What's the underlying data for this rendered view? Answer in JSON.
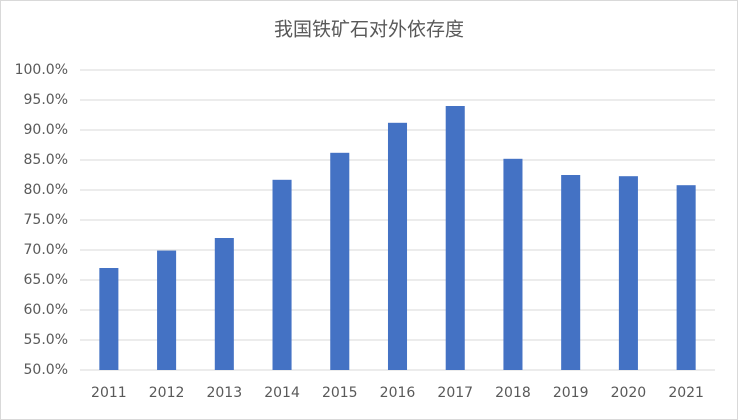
{
  "chart_data": {
    "type": "bar",
    "title": "我国铁矿石对外依存度",
    "categories": [
      "2011",
      "2012",
      "2013",
      "2014",
      "2015",
      "2016",
      "2017",
      "2018",
      "2019",
      "2020",
      "2021"
    ],
    "values": [
      67.0,
      69.9,
      72.0,
      81.7,
      86.2,
      91.2,
      94.0,
      85.2,
      82.5,
      82.3,
      80.8
    ],
    "color": "#4472c4",
    "ylim": [
      50,
      100
    ],
    "yticks": [
      {
        "value": 50,
        "label": "50.0%"
      },
      {
        "value": 55,
        "label": "55.0%"
      },
      {
        "value": 60,
        "label": "60.0%"
      },
      {
        "value": 65,
        "label": "65.0%"
      },
      {
        "value": 70,
        "label": "70.0%"
      },
      {
        "value": 75,
        "label": "75.0%"
      },
      {
        "value": 80,
        "label": "80.0%"
      },
      {
        "value": 85,
        "label": "85.0%"
      },
      {
        "value": 90,
        "label": "90.0%"
      },
      {
        "value": 95,
        "label": "95.0%"
      },
      {
        "value": 100,
        "label": "100.0%"
      }
    ],
    "grid": true
  }
}
